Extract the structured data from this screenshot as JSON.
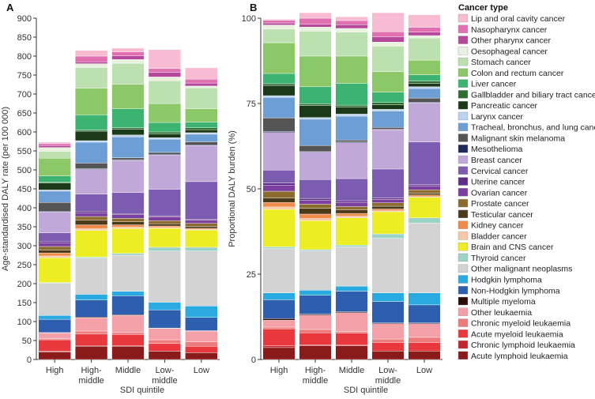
{
  "chart_data": [
    {
      "panel": "A",
      "type": "bar",
      "stacked": true,
      "ylabel": "Age-standardised DALY rate (per 100 000)",
      "xlabel": "SDI quintile",
      "ylim": [
        0,
        900
      ],
      "yticks": [
        0,
        50,
        100,
        150,
        200,
        250,
        300,
        350,
        400,
        450,
        500,
        550,
        600,
        650,
        700,
        750,
        800,
        850,
        900
      ],
      "categories": [
        "High",
        "High-\nmiddle",
        "Middle",
        "Low-\nmiddle",
        "Low"
      ],
      "series": [
        {
          "name": "Acute lymphoid leukaemia",
          "color": "#8B1A1A",
          "values": [
            20,
            35,
            35,
            22,
            18
          ]
        },
        {
          "name": "Chronic lymphoid leukaemia",
          "color": "#C0272D",
          "values": [
            2,
            2,
            1,
            0,
            0
          ]
        },
        {
          "name": "Acute myeloid leukaemia",
          "color": "#E8383D",
          "values": [
            30,
            30,
            30,
            20,
            17
          ]
        },
        {
          "name": "Chronic myeloid leukaemia",
          "color": "#EE7B7B",
          "values": [
            3,
            8,
            5,
            10,
            12
          ]
        },
        {
          "name": "Other leukaemia",
          "color": "#F4A0A8",
          "values": [
            15,
            35,
            45,
            30,
            28
          ]
        },
        {
          "name": "Multiple myeloma",
          "color": "#2B0A0A",
          "values": [
            1,
            2,
            2,
            1,
            1
          ]
        },
        {
          "name": "Non-Hodgkin lymphoma",
          "color": "#2E5FAE",
          "values": [
            35,
            45,
            50,
            48,
            35
          ]
        },
        {
          "name": "Hodgkin lymphoma",
          "color": "#29ABE2",
          "values": [
            10,
            15,
            12,
            20,
            30
          ]
        },
        {
          "name": "Other malignant neoplasms",
          "color": "#D3D3D3",
          "values": [
            85,
            95,
            95,
            135,
            145
          ]
        },
        {
          "name": "Thyroid cancer",
          "color": "#9BD3C7",
          "values": [
            2,
            3,
            5,
            10,
            10
          ]
        },
        {
          "name": "Brain and CNS cancer",
          "color": "#EDED24",
          "values": [
            65,
            70,
            65,
            50,
            45
          ]
        },
        {
          "name": "Bladder cancer",
          "color": "#F8C9A8",
          "values": [
            5,
            5,
            4,
            2,
            2
          ]
        },
        {
          "name": "Kidney cancer",
          "color": "#F08A4B",
          "values": [
            8,
            10,
            6,
            4,
            3
          ]
        },
        {
          "name": "Testicular cancer",
          "color": "#4A3A1A",
          "values": [
            7,
            12,
            8,
            6,
            5
          ]
        },
        {
          "name": "Prostate cancer",
          "color": "#8B6B2E",
          "values": [
            10,
            10,
            9,
            8,
            8
          ]
        },
        {
          "name": "Ovarian cancer",
          "color": "#7B3FA0",
          "values": [
            10,
            10,
            10,
            10,
            8
          ]
        },
        {
          "name": "Uterine cancer",
          "color": "#5E2D8A",
          "values": [
            4,
            4,
            3,
            3,
            2
          ]
        },
        {
          "name": "Cervical cancer",
          "color": "#7B5CB0",
          "values": [
            22,
            45,
            55,
            70,
            100
          ]
        },
        {
          "name": "Breast cancer",
          "color": "#C0A8D8",
          "values": [
            55,
            65,
            85,
            90,
            95
          ]
        },
        {
          "name": "Mesothelioma",
          "color": "#1F2A5C",
          "values": [
            2,
            2,
            2,
            2,
            2
          ]
        },
        {
          "name": "Malignant skin melanoma",
          "color": "#555555",
          "values": [
            23,
            15,
            5,
            5,
            8
          ]
        },
        {
          "name": "Tracheal, bronchus, and lung cancer",
          "color": "#6E9ED6",
          "values": [
            30,
            55,
            55,
            35,
            20
          ]
        },
        {
          "name": "Larynx cancer",
          "color": "#BBD3EE",
          "values": [
            3,
            4,
            5,
            4,
            4
          ]
        },
        {
          "name": "Pancreatic cancer",
          "color": "#1A3A1A",
          "values": [
            18,
            25,
            15,
            10,
            8
          ]
        },
        {
          "name": "Gallbladder and biliary tract cancer",
          "color": "#2E6E2E",
          "values": [
            2,
            3,
            4,
            5,
            5
          ]
        },
        {
          "name": "Liver cancer",
          "color": "#3CB371",
          "values": [
            17,
            40,
            50,
            25,
            15
          ]
        },
        {
          "name": "Colon and rectum cancer",
          "color": "#8CC768",
          "values": [
            47,
            70,
            65,
            50,
            35
          ]
        },
        {
          "name": "Stomach cancer",
          "color": "#BDE0B0",
          "values": [
            18,
            55,
            55,
            60,
            55
          ]
        },
        {
          "name": "Oesophageal cancer",
          "color": "#E8F2DE",
          "values": [
            10,
            10,
            10,
            10,
            5
          ]
        },
        {
          "name": "Other pharynx cancer",
          "color": "#B5489A",
          "values": [
            5,
            5,
            10,
            12,
            8
          ]
        },
        {
          "name": "Nasopharynx cancer",
          "color": "#E070B0",
          "values": [
            5,
            15,
            10,
            10,
            10
          ]
        },
        {
          "name": "Lip and oral cavity cancer",
          "color": "#F7BCD2",
          "values": [
            4,
            15,
            10,
            50,
            30
          ]
        }
      ]
    },
    {
      "panel": "B",
      "type": "bar",
      "stacked": true,
      "ylabel": "Proportional DALY burden (%)",
      "xlabel": "SDI quintile",
      "ylim": [
        0,
        100
      ],
      "yticks": [
        0,
        25,
        50,
        75,
        100
      ],
      "categories": [
        "High",
        "High-\nmiddle",
        "Middle",
        "Low-\nmiddle",
        "Low"
      ],
      "series": [
        {
          "name": "Acute lymphoid leukaemia",
          "color": "#8B1A1A",
          "values": [
            3.5,
            4,
            4,
            2.5,
            2.5
          ]
        },
        {
          "name": "Chronic lymphoid leukaemia",
          "color": "#C0272D",
          "values": [
            0.5,
            0.3,
            0.2,
            0,
            0
          ]
        },
        {
          "name": "Acute myeloid leukaemia",
          "color": "#E8383D",
          "values": [
            5,
            3.5,
            3.5,
            2.5,
            2.5
          ]
        },
        {
          "name": "Chronic myeloid leukaemia",
          "color": "#EE7B7B",
          "values": [
            0.5,
            1,
            0.5,
            1,
            1.5
          ]
        },
        {
          "name": "Other leukaemia",
          "color": "#F4A0A8",
          "values": [
            2,
            4.2,
            5.5,
            4.5,
            4
          ]
        },
        {
          "name": "Multiple myeloma",
          "color": "#2B0A0A",
          "values": [
            0.5,
            0.3,
            0.3,
            0.2,
            0.2
          ]
        },
        {
          "name": "Non-Hodgkin lymphoma",
          "color": "#2E5FAE",
          "values": [
            5.5,
            5.5,
            6,
            6.3,
            5.3
          ]
        },
        {
          "name": "Hodgkin lymphoma",
          "color": "#29ABE2",
          "values": [
            2,
            1.5,
            1.5,
            2.5,
            3.5
          ]
        },
        {
          "name": "Other malignant neoplasms",
          "color": "#D3D3D3",
          "values": [
            13,
            11.5,
            11.5,
            16,
            20.5
          ]
        },
        {
          "name": "Thyroid cancer",
          "color": "#9BD3C7",
          "values": [
            0.5,
            0.4,
            0.5,
            1.3,
            1.5
          ]
        },
        {
          "name": "Brain and CNS cancer",
          "color": "#EDED24",
          "values": [
            11,
            8.5,
            8,
            6.5,
            6
          ]
        },
        {
          "name": "Bladder cancer",
          "color": "#F8C9A8",
          "values": [
            0.7,
            0.6,
            0.5,
            0.3,
            0.2
          ]
        },
        {
          "name": "Kidney cancer",
          "color": "#F08A4B",
          "values": [
            1.3,
            1.3,
            0.8,
            0.5,
            0.5
          ]
        },
        {
          "name": "Testicular cancer",
          "color": "#4A3A1A",
          "values": [
            1.3,
            1.7,
            1,
            0.8,
            0.5
          ]
        },
        {
          "name": "Prostate cancer",
          "color": "#8B6B2E",
          "values": [
            2,
            1.2,
            1,
            1,
            1
          ]
        },
        {
          "name": "Ovarian cancer",
          "color": "#7B3FA0",
          "values": [
            1.7,
            1.2,
            1.2,
            1,
            1.2
          ]
        },
        {
          "name": "Uterine cancer",
          "color": "#5E2D8A",
          "values": [
            0.7,
            0.5,
            0.5,
            0.4,
            0.3
          ]
        },
        {
          "name": "Cervical cancer",
          "color": "#7B5CB0",
          "values": [
            3.8,
            5.5,
            6.5,
            8.5,
            12.5
          ]
        },
        {
          "name": "Breast cancer",
          "color": "#C0A8D8",
          "values": [
            11,
            8,
            10.5,
            11.5,
            11.5
          ]
        },
        {
          "name": "Mesothelioma",
          "color": "#1F2A5C",
          "values": [
            0.3,
            0.2,
            0.2,
            0.2,
            0.2
          ]
        },
        {
          "name": "Malignant skin melanoma",
          "color": "#555555",
          "values": [
            4,
            1.8,
            0.6,
            0.5,
            1.2
          ]
        },
        {
          "name": "Tracheal, bronchus, and lung cancer",
          "color": "#6E9ED6",
          "values": [
            6,
            7.7,
            7,
            4.8,
            2.8
          ]
        },
        {
          "name": "Larynx cancer",
          "color": "#BBD3EE",
          "values": [
            0.5,
            0.5,
            0.6,
            0.5,
            0.5
          ]
        },
        {
          "name": "Pancreatic cancer",
          "color": "#1A3A1A",
          "values": [
            3,
            3.5,
            2,
            1.3,
            1
          ]
        },
        {
          "name": "Gallbladder and biliary tract cancer",
          "color": "#2E6E2E",
          "values": [
            0.5,
            0.5,
            0.6,
            0.7,
            0.7
          ]
        },
        {
          "name": "Liver cancer",
          "color": "#3CB371",
          "values": [
            3,
            5,
            6.4,
            3,
            1.8
          ]
        },
        {
          "name": "Colon and rectum cancer",
          "color": "#8CC768",
          "values": [
            9,
            9,
            8,
            6,
            4.3
          ]
        },
        {
          "name": "Stomach cancer",
          "color": "#BDE0B0",
          "values": [
            4,
            7.3,
            7,
            7.5,
            6.5
          ]
        },
        {
          "name": "Oesophageal cancer",
          "color": "#E8F2DE",
          "values": [
            1.2,
            1.2,
            1.1,
            1.2,
            0.7
          ]
        },
        {
          "name": "Other pharynx cancer",
          "color": "#B5489A",
          "values": [
            0.6,
            0.8,
            1.1,
            1.5,
            1
          ]
        },
        {
          "name": "Nasopharynx cancer",
          "color": "#E070B0",
          "values": [
            0.8,
            1.8,
            1.2,
            1.5,
            1.4
          ]
        },
        {
          "name": "Lip and oral cavity cancer",
          "color": "#F7BCD2",
          "values": [
            0.3,
            1.6,
            1.1,
            5.6,
            3.7
          ]
        }
      ]
    }
  ],
  "legend": {
    "title": "Cancer type",
    "items": [
      {
        "label": "Lip and oral cavity cancer",
        "color": "#F7BCD2"
      },
      {
        "label": "Nasopharynx cancer",
        "color": "#E070B0"
      },
      {
        "label": "Other pharynx cancer",
        "color": "#B5489A"
      },
      {
        "label": "Oesophageal cancer",
        "color": "#E8F2DE"
      },
      {
        "label": "Stomach cancer",
        "color": "#BDE0B0"
      },
      {
        "label": "Colon and rectum cancer",
        "color": "#8CC768"
      },
      {
        "label": "Liver cancer",
        "color": "#3CB371"
      },
      {
        "label": "Gallbladder and biliary tract cancer",
        "color": "#2E6E2E"
      },
      {
        "label": "Pancreatic cancer",
        "color": "#1A3A1A"
      },
      {
        "label": "Larynx cancer",
        "color": "#BBD3EE"
      },
      {
        "label": "Tracheal, bronchus, and lung cancer",
        "color": "#6E9ED6"
      },
      {
        "label": "Malignant skin melanoma",
        "color": "#555555"
      },
      {
        "label": "Mesothelioma",
        "color": "#1F2A5C"
      },
      {
        "label": "Breast cancer",
        "color": "#C0A8D8"
      },
      {
        "label": "Cervical cancer",
        "color": "#7B5CB0"
      },
      {
        "label": "Uterine cancer",
        "color": "#5E2D8A"
      },
      {
        "label": "Ovarian cancer",
        "color": "#7B3FA0"
      },
      {
        "label": "Prostate cancer",
        "color": "#8B6B2E"
      },
      {
        "label": "Testicular cancer",
        "color": "#4A3A1A"
      },
      {
        "label": "Kidney cancer",
        "color": "#F08A4B"
      },
      {
        "label": "Bladder cancer",
        "color": "#F8C9A8"
      },
      {
        "label": "Brain and CNS cancer",
        "color": "#EDED24"
      },
      {
        "label": "Thyroid cancer",
        "color": "#9BD3C7"
      },
      {
        "label": "Other malignant neoplasms",
        "color": "#D3D3D3"
      },
      {
        "label": "Hodgkin lymphoma",
        "color": "#29ABE2"
      },
      {
        "label": "Non-Hodgkin lymphoma",
        "color": "#2E5FAE"
      },
      {
        "label": "Multiple myeloma",
        "color": "#2B0A0A"
      },
      {
        "label": "Other leukaemia",
        "color": "#F4A0A8"
      },
      {
        "label": "Chronic myeloid leukaemia",
        "color": "#EE7B7B"
      },
      {
        "label": "Acute myeloid leukaemia",
        "color": "#E8383D"
      },
      {
        "label": "Chronic lymphoid leukaemia",
        "color": "#C0272D"
      },
      {
        "label": "Acute lymphoid leukaemia",
        "color": "#8B1A1A"
      }
    ]
  }
}
